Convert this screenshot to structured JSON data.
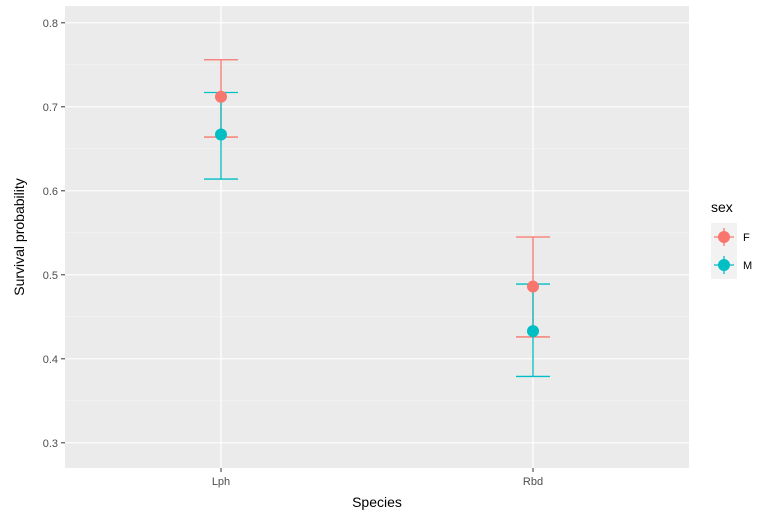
{
  "chart_data": {
    "type": "scatter",
    "xlabel": "Species",
    "ylabel": "Survival probability",
    "categories": [
      "Lph",
      "Rbd"
    ],
    "ylim": [
      0.27,
      0.82
    ],
    "yticks": [
      0.3,
      0.4,
      0.5,
      0.6,
      0.7,
      0.8
    ],
    "ytick_labels": [
      "0.3",
      "0.4",
      "0.5",
      "0.6",
      "0.7",
      "0.8"
    ],
    "grid": true,
    "legend": {
      "title": "sex",
      "position": "right"
    },
    "series": [
      {
        "name": "F",
        "color": "#F8766D",
        "values": [
          0.712,
          0.486
        ],
        "lower": [
          0.664,
          0.426
        ],
        "upper": [
          0.756,
          0.545
        ]
      },
      {
        "name": "M",
        "color": "#00BFC4",
        "values": [
          0.667,
          0.433
        ],
        "lower": [
          0.614,
          0.379
        ],
        "upper": [
          0.717,
          0.489
        ]
      }
    ]
  }
}
